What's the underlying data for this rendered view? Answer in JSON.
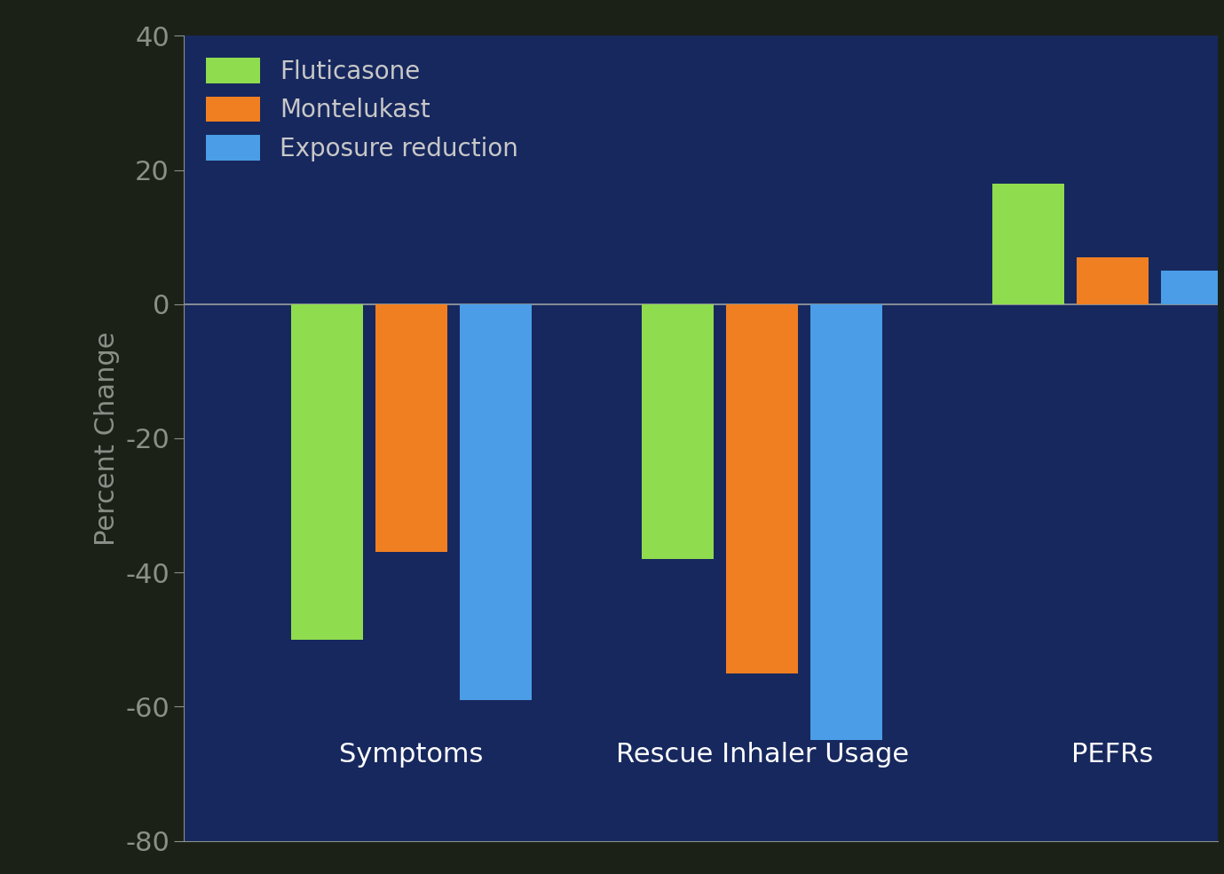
{
  "chart_data": {
    "type": "bar",
    "y_label": "Percent Change",
    "categories": [
      "Symptoms",
      "Rescue Inhaler Usage",
      "PEFRs"
    ],
    "series": [
      {
        "name": "Fluticasone",
        "color": "#8fdc4f",
        "values": [
          -50,
          -38,
          18
        ]
      },
      {
        "name": "Montelukast",
        "color": "#f07f22",
        "values": [
          -37,
          -55,
          7
        ]
      },
      {
        "name": "Exposure reduction",
        "color": "#4a9de6",
        "values": [
          -59,
          -65,
          5
        ]
      }
    ],
    "ylim": [
      -80,
      40
    ],
    "yticks": [
      -80,
      -60,
      -40,
      -20,
      0,
      20,
      40
    ],
    "legend": "upper left",
    "grid": false
  }
}
